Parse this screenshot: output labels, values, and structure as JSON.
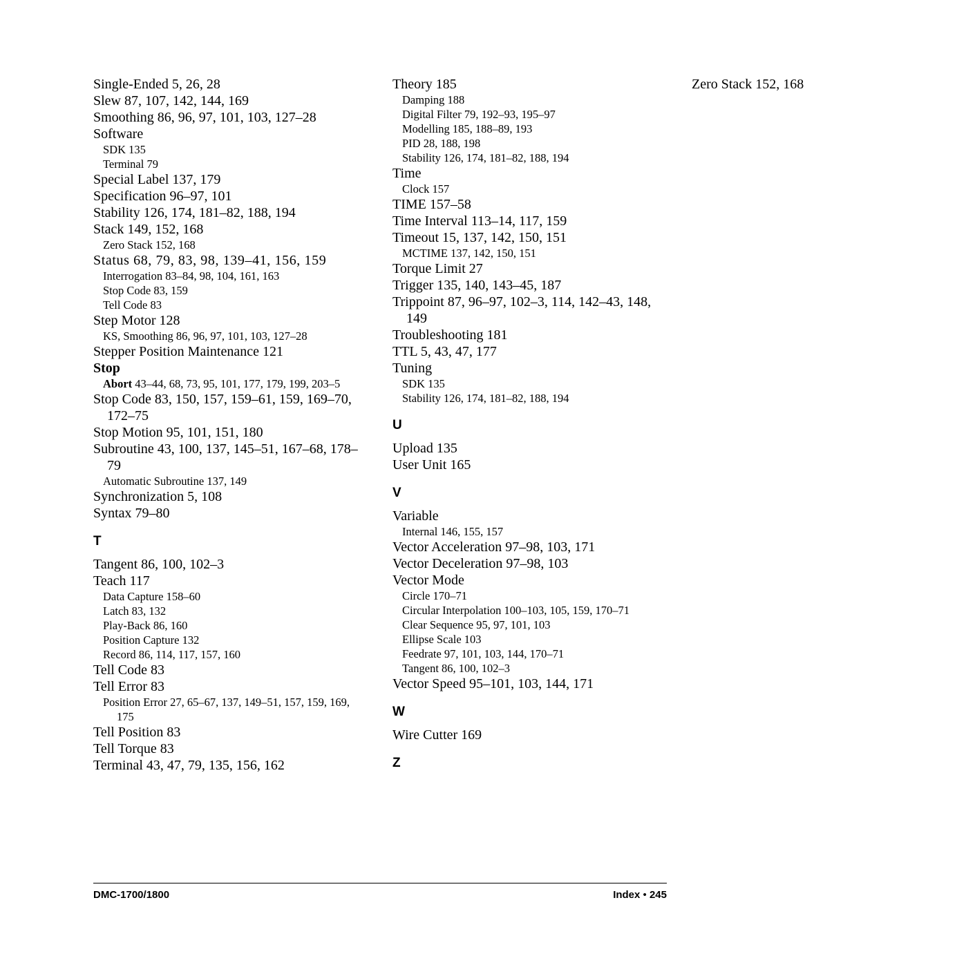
{
  "footer": {
    "left": "DMC-1700/1800",
    "right_label": "Index",
    "right_sep": "  •  ",
    "right_page": "245"
  },
  "entries": [
    {
      "level": "main",
      "text": "Single-Ended 5, 26, 28"
    },
    {
      "level": "main",
      "text": "Slew 87, 107, 142, 144, 169"
    },
    {
      "level": "main",
      "text": "Smoothing 86, 96, 97, 101, 103, 127–28"
    },
    {
      "level": "main",
      "text": "Software"
    },
    {
      "level": "sub",
      "text": "SDK 135"
    },
    {
      "level": "sub",
      "text": "Terminal 79"
    },
    {
      "level": "main",
      "text": "Special Label 137, 179"
    },
    {
      "level": "main",
      "text": "Specification 96–97, 101"
    },
    {
      "level": "main",
      "text": "Stability 126, 174, 181–82, 188, 194"
    },
    {
      "level": "main",
      "text": "Stack 149, 152, 168"
    },
    {
      "level": "sub",
      "text": "Zero Stack 152, 168"
    },
    {
      "level": "main",
      "text": "Status 68, 79, 83, 98, 139–41, 156, 159",
      "extraClass": "sp2"
    },
    {
      "level": "sub",
      "text": "Interrogation 83–84, 98, 104, 161, 163"
    },
    {
      "level": "sub",
      "text": "Stop Code 83, 159"
    },
    {
      "level": "sub",
      "text": "Tell Code 83"
    },
    {
      "level": "main",
      "text": "Step Motor 128"
    },
    {
      "level": "sub",
      "text": "KS, Smoothing 86, 96, 97, 101, 103, 127–28"
    },
    {
      "level": "main",
      "text": "Stepper Position Maintenance 121"
    },
    {
      "level": "main",
      "text": "Stop",
      "extraClass": "bold-main"
    },
    {
      "level": "sub",
      "text": "Abort 43–44, 68, 73, 95, 101, 177, 179, 199, 203–5",
      "boldFirst": true
    },
    {
      "level": "main",
      "text": "Stop Code 83, 150, 157, 159–61, 159, 169–70, 172–75"
    },
    {
      "level": "main",
      "text": "Stop Motion 95, 101, 151, 180"
    },
    {
      "level": "main",
      "text": "Subroutine 43, 100, 137, 145–51, 167–68, 178–79"
    },
    {
      "level": "sub",
      "text": "Automatic Subroutine 137, 149"
    },
    {
      "level": "main",
      "text": "Synchronization 5, 108"
    },
    {
      "level": "main",
      "text": "Syntax 79–80"
    },
    {
      "level": "letter",
      "text": "T"
    },
    {
      "level": "main",
      "text": "Tangent 86, 100, 102–3"
    },
    {
      "level": "main",
      "text": "Teach 117"
    },
    {
      "level": "sub",
      "text": "Data Capture 158–60"
    },
    {
      "level": "sub",
      "text": "Latch 83, 132"
    },
    {
      "level": "sub",
      "text": "Play-Back 86, 160"
    },
    {
      "level": "sub",
      "text": "Position Capture 132"
    },
    {
      "level": "sub",
      "text": "Record 86, 114, 117, 157, 160"
    },
    {
      "level": "main",
      "text": "Tell Code 83"
    },
    {
      "level": "main",
      "text": "Tell Error 83"
    },
    {
      "level": "sub",
      "text": "Position Error 27, 65–67, 137, 149–51, 157, 159, 169, 175"
    },
    {
      "level": "main",
      "text": "Tell Position 83"
    },
    {
      "level": "main",
      "text": "Tell Torque 83"
    },
    {
      "level": "main",
      "text": "Terminal 43, 47, 79, 135, 156, 162"
    },
    {
      "level": "main",
      "text": "Theory 185"
    },
    {
      "level": "sub",
      "text": "Damping 188"
    },
    {
      "level": "sub",
      "text": "Digital Filter 79, 192–93, 195–97"
    },
    {
      "level": "sub",
      "text": "Modelling 185, 188–89, 193"
    },
    {
      "level": "sub",
      "text": "PID 28, 188, 198"
    },
    {
      "level": "sub",
      "text": "Stability 126, 174, 181–82, 188, 194"
    },
    {
      "level": "main",
      "text": "Time"
    },
    {
      "level": "sub",
      "text": "Clock 157"
    },
    {
      "level": "main",
      "text": "TIME 157–58"
    },
    {
      "level": "main",
      "text": "Time Interval 113–14, 117, 159"
    },
    {
      "level": "main",
      "text": "Timeout 15, 137, 142, 150, 151"
    },
    {
      "level": "sub",
      "text": "MCTIME 137, 142, 150, 151"
    },
    {
      "level": "main",
      "text": "Torque Limit 27"
    },
    {
      "level": "main",
      "text": "Trigger 135, 140, 143–45, 187"
    },
    {
      "level": "main",
      "text": "Trippoint 87, 96–97, 102–3, 114, 142–43, 148, 149"
    },
    {
      "level": "main",
      "text": "Troubleshooting 181"
    },
    {
      "level": "main",
      "text": "TTL 5, 43, 47, 177"
    },
    {
      "level": "main",
      "text": "Tuning"
    },
    {
      "level": "sub",
      "text": "SDK 135"
    },
    {
      "level": "sub",
      "text": "Stability 126, 174, 181–82, 188, 194"
    },
    {
      "level": "letter",
      "text": "U"
    },
    {
      "level": "main",
      "text": "Upload 135"
    },
    {
      "level": "main",
      "text": "User Unit 165"
    },
    {
      "level": "letter",
      "text": "V"
    },
    {
      "level": "main",
      "text": "Variable"
    },
    {
      "level": "sub",
      "text": "Internal 146, 155, 157"
    },
    {
      "level": "main",
      "text": "Vector Acceleration 97–98, 103, 171"
    },
    {
      "level": "main",
      "text": "Vector Deceleration 97–98, 103"
    },
    {
      "level": "main",
      "text": "Vector Mode"
    },
    {
      "level": "sub",
      "text": "Circle 170–71"
    },
    {
      "level": "sub",
      "text": "Circular Interpolation 100–103, 105, 159, 170–71"
    },
    {
      "level": "sub",
      "text": "Clear Sequence 95, 97, 101, 103"
    },
    {
      "level": "sub",
      "text": "Ellipse Scale 103"
    },
    {
      "level": "sub",
      "text": "Feedrate 97, 101, 103, 144, 170–71"
    },
    {
      "level": "sub",
      "text": "Tangent 86, 100, 102–3"
    },
    {
      "level": "main",
      "text": "Vector Speed 95–101, 103, 144, 171"
    },
    {
      "level": "letter",
      "text": "W"
    },
    {
      "level": "main",
      "text": "Wire Cutter 169"
    },
    {
      "level": "letter",
      "text": "Z"
    },
    {
      "level": "main",
      "text": "Zero Stack 152, 168"
    }
  ]
}
